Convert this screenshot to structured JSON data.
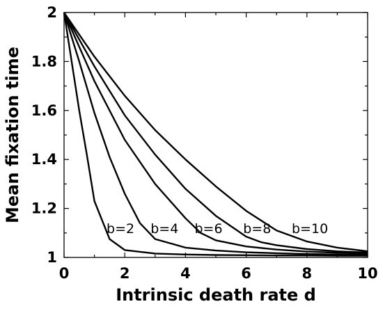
{
  "chart_data": {
    "type": "line",
    "title": "",
    "xlabel": "Intrinsic death rate d",
    "ylabel": "Mean fixation time",
    "xlim": [
      0,
      10
    ],
    "ylim": [
      1,
      2
    ],
    "xticks": [
      "0",
      "2",
      "4",
      "6",
      "8",
      "10"
    ],
    "yticks": [
      "1",
      "1.2",
      "1.4",
      "1.6",
      "1.8",
      "2"
    ],
    "grid": false,
    "line_color": "#000000",
    "series": [
      {
        "name": "b=2",
        "x": [
          0,
          0.25,
          0.5,
          0.75,
          1.0,
          1.5,
          2.0,
          3,
          4,
          5,
          6,
          7,
          8,
          9,
          10
        ],
        "y": [
          2.0,
          1.8,
          1.6,
          1.42,
          1.23,
          1.075,
          1.03,
          1.016,
          1.012,
          1.01,
          1.009,
          1.008,
          1.008,
          1.007,
          1.007
        ]
      },
      {
        "name": "b=4",
        "x": [
          0,
          0.5,
          1.0,
          1.5,
          2.0,
          2.5,
          3.0,
          4,
          5,
          6,
          7,
          8,
          9,
          10
        ],
        "y": [
          2.0,
          1.8,
          1.59,
          1.41,
          1.26,
          1.14,
          1.075,
          1.04,
          1.028,
          1.021,
          1.017,
          1.014,
          1.012,
          1.011
        ]
      },
      {
        "name": "b=6",
        "x": [
          0,
          1,
          2,
          3,
          4,
          4.5,
          5,
          6,
          7,
          8,
          9,
          10
        ],
        "y": [
          2.0,
          1.72,
          1.48,
          1.3,
          1.16,
          1.1,
          1.07,
          1.045,
          1.032,
          1.024,
          1.019,
          1.016
        ]
      },
      {
        "name": "b=8",
        "x": [
          0,
          1,
          2,
          3,
          4,
          5,
          6,
          6.5,
          7,
          8,
          9,
          10
        ],
        "y": [
          2.0,
          1.78,
          1.58,
          1.42,
          1.28,
          1.17,
          1.085,
          1.062,
          1.05,
          1.034,
          1.025,
          1.02
        ]
      },
      {
        "name": "b=10",
        "x": [
          0,
          1,
          2,
          3,
          4,
          5,
          6,
          7,
          8,
          9,
          10
        ],
        "y": [
          2.0,
          1.82,
          1.66,
          1.52,
          1.4,
          1.29,
          1.19,
          1.11,
          1.065,
          1.04,
          1.025
        ]
      }
    ],
    "annotations": [
      {
        "text": "b=2",
        "x": 1.4,
        "y": 1.12
      },
      {
        "text": "b=4",
        "x": 2.85,
        "y": 1.12
      },
      {
        "text": "b=6",
        "x": 4.3,
        "y": 1.12
      },
      {
        "text": "b=8",
        "x": 5.9,
        "y": 1.12
      },
      {
        "text": "b=10",
        "x": 7.5,
        "y": 1.12
      }
    ]
  }
}
